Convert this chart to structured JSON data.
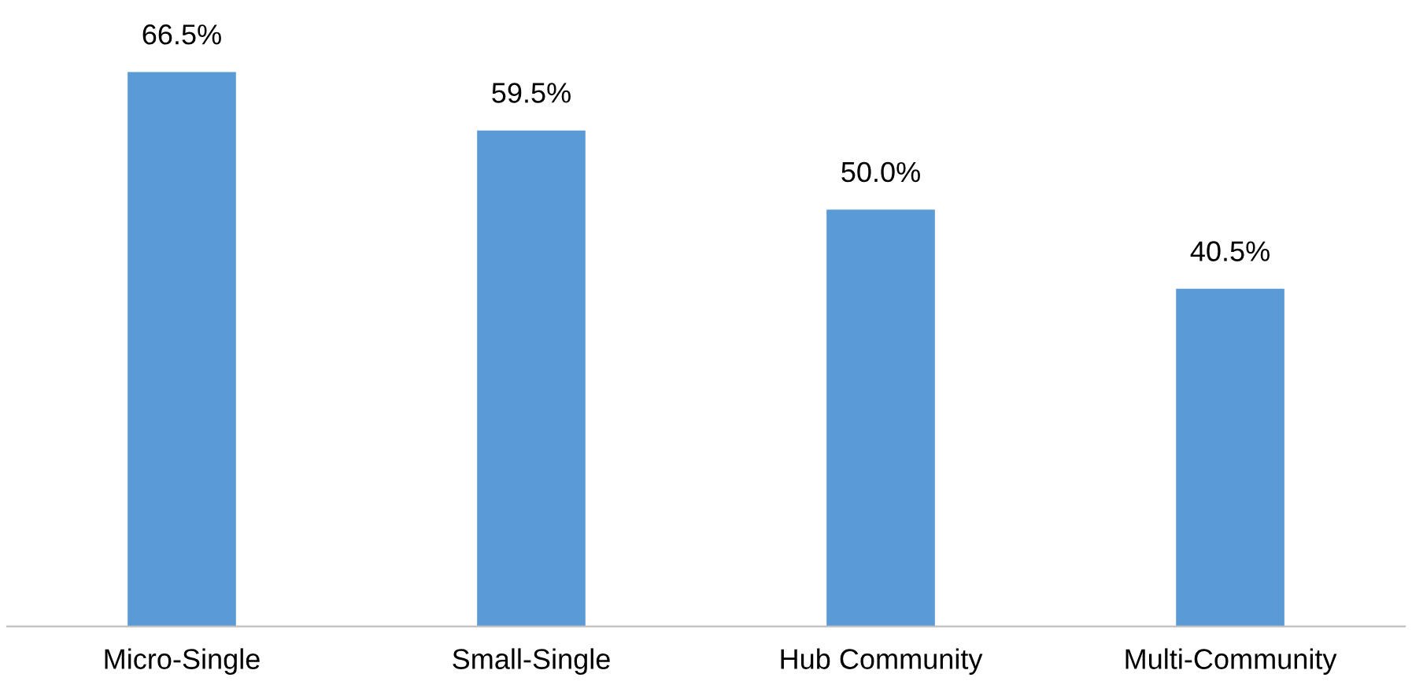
{
  "chart_data": {
    "type": "bar",
    "categories": [
      "Micro-Single",
      "Small-Single",
      "Hub Community",
      "Multi-Community"
    ],
    "values": [
      66.5,
      59.5,
      50.0,
      40.5
    ],
    "value_labels": [
      "66.5%",
      "59.5%",
      "50.0%",
      "40.5%"
    ],
    "color": "#5b9bd5",
    "grid": false,
    "legend": false
  }
}
